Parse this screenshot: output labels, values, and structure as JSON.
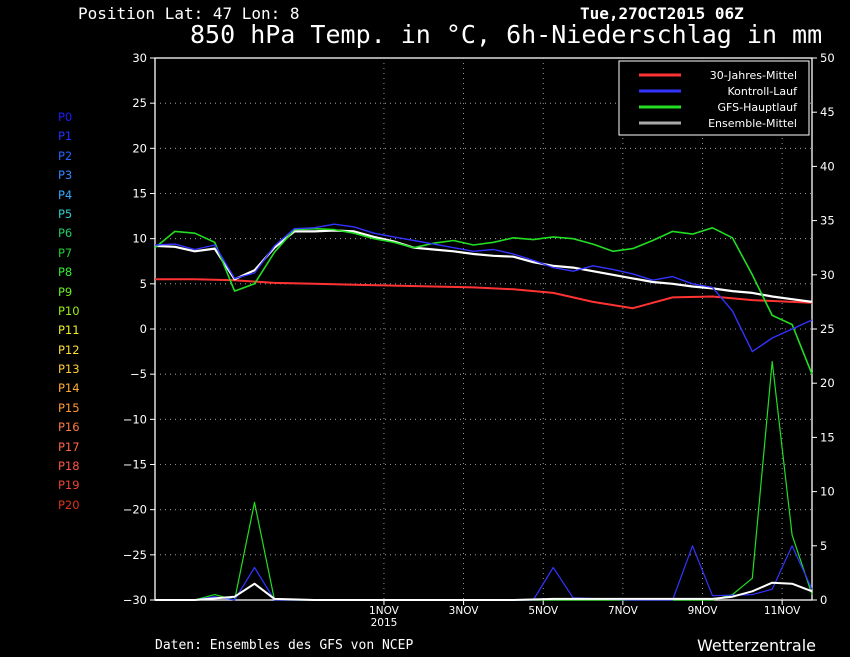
{
  "header": {
    "position": "Position   Lat: 47 Lon: 8",
    "datetime": "Tue,27OCT2015 06Z",
    "title": "850 hPa Temp. in °C, 6h-Niederschlag in mm"
  },
  "footer": {
    "source": "Daten: Ensembles des GFS von NCEP",
    "brand": "Wetterzentrale"
  },
  "members": [
    {
      "label": "P0",
      "color": "#1c1cff"
    },
    {
      "label": "P1",
      "color": "#2233ff"
    },
    {
      "label": "P2",
      "color": "#2266ff"
    },
    {
      "label": "P3",
      "color": "#3388ff"
    },
    {
      "label": "P4",
      "color": "#33aaff"
    },
    {
      "label": "P5",
      "color": "#33cccc"
    },
    {
      "label": "P6",
      "color": "#22cc66"
    },
    {
      "label": "P7",
      "color": "#22cc33"
    },
    {
      "label": "P8",
      "color": "#33ee33"
    },
    {
      "label": "P9",
      "color": "#66ee22"
    },
    {
      "label": "P10",
      "color": "#99ee11"
    },
    {
      "label": "P11",
      "color": "#eeee22"
    },
    {
      "label": "P12",
      "color": "#ffdd33"
    },
    {
      "label": "P13",
      "color": "#ffcc33"
    },
    {
      "label": "P14",
      "color": "#ffaa33"
    },
    {
      "label": "P15",
      "color": "#ff9933"
    },
    {
      "label": "P16",
      "color": "#ff7744"
    },
    {
      "label": "P17",
      "color": "#ff6644"
    },
    {
      "label": "P18",
      "color": "#ff5544"
    },
    {
      "label": "P19",
      "color": "#ee4433"
    },
    {
      "label": "P20",
      "color": "#dd3322"
    }
  ],
  "chart_data": {
    "type": "line",
    "x_ticks": [
      {
        "label": "1NOV",
        "day": 5.75,
        "sub": "2015"
      },
      {
        "label": "3NOV",
        "day": 7.75
      },
      {
        "label": "5NOV",
        "day": 9.75
      },
      {
        "label": "7NOV",
        "day": 11.75
      },
      {
        "label": "9NOV",
        "day": 13.75
      },
      {
        "label": "11NOV",
        "day": 15.75
      }
    ],
    "xlim": [
      0,
      16.5
    ],
    "y_left": {
      "range": [
        -30,
        30
      ],
      "ticks": [
        30,
        25,
        20,
        15,
        10,
        5,
        0,
        -5,
        -10,
        -15,
        -20,
        -25,
        -30
      ]
    },
    "y_right": {
      "range": [
        0,
        50
      ],
      "ticks": [
        50,
        45,
        40,
        35,
        30,
        25,
        20,
        15,
        10,
        5,
        0
      ]
    },
    "grid": true,
    "legend": {
      "position": "top-right",
      "entries": [
        {
          "name": "30-Jahres-Mittel",
          "color": "#ff3333"
        },
        {
          "name": "Kontroll-Lauf",
          "color": "#3333ff"
        },
        {
          "name": "GFS-Hauptlauf",
          "color": "#22dd22"
        },
        {
          "name": "Ensemble-Mittel",
          "color": "#aaaaaa"
        }
      ]
    },
    "series": [
      {
        "name": "30-Jahres-Mittel",
        "axis": "left",
        "color": "#ff3333",
        "width": 2,
        "points": [
          [
            0,
            5.5
          ],
          [
            1,
            5.5
          ],
          [
            2,
            5.4
          ],
          [
            3,
            5.1
          ],
          [
            4,
            5.0
          ],
          [
            5,
            4.9
          ],
          [
            6,
            4.8
          ],
          [
            7,
            4.7
          ],
          [
            8,
            4.6
          ],
          [
            9,
            4.4
          ],
          [
            10,
            4.0
          ],
          [
            11,
            3.0
          ],
          [
            12,
            2.3
          ],
          [
            13,
            3.5
          ],
          [
            14,
            3.6
          ],
          [
            15,
            3.2
          ],
          [
            16,
            3.0
          ],
          [
            16.5,
            2.9
          ]
        ]
      },
      {
        "name": "Ensemble-Mittel",
        "axis": "left",
        "color": "#ffffff",
        "width": 2.2,
        "points": [
          [
            0,
            9.2
          ],
          [
            0.5,
            9.1
          ],
          [
            1,
            8.6
          ],
          [
            1.5,
            8.9
          ],
          [
            2,
            5.5
          ],
          [
            2.5,
            6.5
          ],
          [
            3,
            9.0
          ],
          [
            3.5,
            10.8
          ],
          [
            4,
            10.8
          ],
          [
            4.5,
            10.9
          ],
          [
            5,
            10.8
          ],
          [
            5.5,
            10.2
          ],
          [
            6,
            9.7
          ],
          [
            6.5,
            9.0
          ],
          [
            7,
            8.8
          ],
          [
            7.5,
            8.6
          ],
          [
            8,
            8.3
          ],
          [
            8.5,
            8.1
          ],
          [
            9,
            8.0
          ],
          [
            9.5,
            7.4
          ],
          [
            10,
            7.0
          ],
          [
            10.5,
            6.8
          ],
          [
            11,
            6.4
          ],
          [
            11.5,
            6.0
          ],
          [
            12,
            5.6
          ],
          [
            12.5,
            5.2
          ],
          [
            13,
            5.0
          ],
          [
            13.5,
            4.7
          ],
          [
            14,
            4.5
          ],
          [
            14.5,
            4.2
          ],
          [
            15,
            4.0
          ],
          [
            15.5,
            3.6
          ],
          [
            16,
            3.3
          ],
          [
            16.5,
            3.0
          ]
        ]
      },
      {
        "name": "GFS-Hauptlauf",
        "axis": "left",
        "color": "#22dd22",
        "width": 1.6,
        "points": [
          [
            0,
            9.0
          ],
          [
            0.5,
            10.8
          ],
          [
            1,
            10.6
          ],
          [
            1.5,
            9.6
          ],
          [
            2,
            4.2
          ],
          [
            2.5,
            5.0
          ],
          [
            3,
            8.5
          ],
          [
            3.5,
            11.0
          ],
          [
            4,
            11.1
          ],
          [
            4.5,
            11.0
          ],
          [
            5,
            10.6
          ],
          [
            5.5,
            10.0
          ],
          [
            6,
            9.6
          ],
          [
            6.5,
            9.0
          ],
          [
            7,
            9.5
          ],
          [
            7.5,
            9.8
          ],
          [
            8,
            9.3
          ],
          [
            8.5,
            9.6
          ],
          [
            9,
            10.1
          ],
          [
            9.5,
            9.9
          ],
          [
            10,
            10.2
          ],
          [
            10.5,
            10.0
          ],
          [
            11,
            9.4
          ],
          [
            11.5,
            8.6
          ],
          [
            12,
            8.9
          ],
          [
            12.5,
            9.8
          ],
          [
            13,
            10.8
          ],
          [
            13.5,
            10.5
          ],
          [
            14,
            11.2
          ],
          [
            14.5,
            10.1
          ],
          [
            15,
            6.0
          ],
          [
            15.5,
            1.5
          ],
          [
            16,
            0.5
          ],
          [
            16.5,
            -5.0
          ]
        ]
      },
      {
        "name": "Kontroll-Lauf",
        "axis": "left",
        "color": "#3333ff",
        "width": 1.4,
        "points": [
          [
            0,
            9.3
          ],
          [
            0.5,
            9.4
          ],
          [
            1,
            8.8
          ],
          [
            1.5,
            9.3
          ],
          [
            2,
            5.6
          ],
          [
            2.5,
            6.2
          ],
          [
            3,
            9.2
          ],
          [
            3.5,
            11.1
          ],
          [
            4,
            11.2
          ],
          [
            4.5,
            11.6
          ],
          [
            5,
            11.3
          ],
          [
            5.5,
            10.6
          ],
          [
            6,
            10.2
          ],
          [
            6.5,
            9.8
          ],
          [
            7,
            9.4
          ],
          [
            7.5,
            9.0
          ],
          [
            8,
            8.6
          ],
          [
            8.5,
            8.8
          ],
          [
            9,
            8.3
          ],
          [
            9.5,
            7.6
          ],
          [
            10,
            6.8
          ],
          [
            10.5,
            6.4
          ],
          [
            11,
            7.0
          ],
          [
            11.5,
            6.6
          ],
          [
            12,
            6.1
          ],
          [
            12.5,
            5.4
          ],
          [
            13,
            5.8
          ],
          [
            13.5,
            5.0
          ],
          [
            14,
            4.6
          ],
          [
            14.5,
            2.0
          ],
          [
            15,
            -2.5
          ],
          [
            15.5,
            -1.0
          ],
          [
            16,
            0.0
          ],
          [
            16.5,
            1.0
          ]
        ]
      },
      {
        "name": "Niederschlag GFS-Hauptlauf",
        "axis": "right",
        "color": "#22dd22",
        "width": 1.2,
        "points": [
          [
            1,
            0
          ],
          [
            1.5,
            0.5
          ],
          [
            2,
            0
          ],
          [
            2.5,
            9
          ],
          [
            3,
            0
          ],
          [
            4,
            0
          ],
          [
            6,
            0
          ],
          [
            8,
            0
          ],
          [
            10,
            0
          ],
          [
            12,
            0
          ],
          [
            14,
            0
          ],
          [
            14.5,
            0.5
          ],
          [
            15,
            2
          ],
          [
            15.5,
            22
          ],
          [
            16,
            6
          ],
          [
            16.5,
            0.5
          ]
        ]
      },
      {
        "name": "Niederschlag Kontroll-Lauf",
        "axis": "right",
        "color": "#3333ff",
        "width": 1.2,
        "points": [
          [
            1,
            0
          ],
          [
            1.5,
            0.3
          ],
          [
            2,
            0
          ],
          [
            2.5,
            3
          ],
          [
            3,
            0
          ],
          [
            4,
            0
          ],
          [
            6,
            0
          ],
          [
            8,
            0
          ],
          [
            9.5,
            0
          ],
          [
            10,
            3
          ],
          [
            10.5,
            0.2
          ],
          [
            12,
            0
          ],
          [
            13,
            0
          ],
          [
            13.5,
            5
          ],
          [
            14,
            0.4
          ],
          [
            15,
            0.5
          ],
          [
            15.5,
            1
          ],
          [
            16,
            5
          ],
          [
            16.5,
            1
          ]
        ]
      },
      {
        "name": "Niederschlag Ensemble-Mittel",
        "axis": "right",
        "color": "#ffffff",
        "width": 2,
        "points": [
          [
            0,
            0
          ],
          [
            1,
            0
          ],
          [
            2,
            0.3
          ],
          [
            2.5,
            1.5
          ],
          [
            3,
            0.1
          ],
          [
            4,
            0
          ],
          [
            9,
            0
          ],
          [
            10,
            0.1
          ],
          [
            12,
            0.1
          ],
          [
            14,
            0.1
          ],
          [
            14.5,
            0.3
          ],
          [
            15,
            0.8
          ],
          [
            15.5,
            1.6
          ],
          [
            16,
            1.5
          ],
          [
            16.5,
            0.8
          ]
        ]
      }
    ]
  }
}
